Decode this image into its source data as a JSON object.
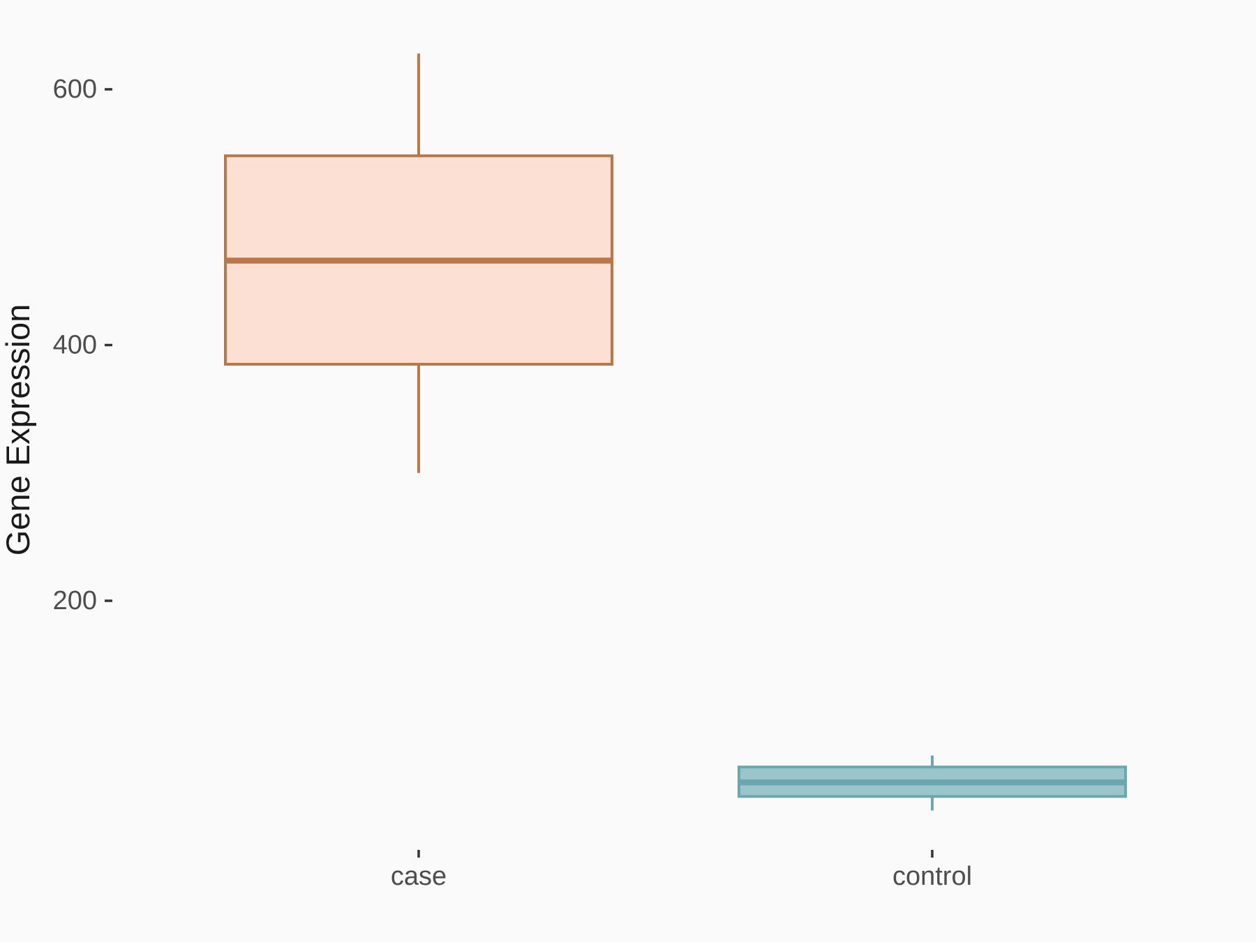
{
  "figure": {
    "background_color": "#FAFAFA"
  },
  "chart_data": {
    "type": "boxplot",
    "title": "",
    "xlabel": "",
    "ylabel": "Gene Expression",
    "categories": [
      "case",
      "control"
    ],
    "y_ticks": [
      200,
      400,
      600
    ],
    "ylim": [
      0,
      650
    ],
    "grid": false,
    "legend": "none",
    "whisker_caps": false,
    "series": [
      {
        "name": "case",
        "whisker_low": 300,
        "q1": 385,
        "median": 466,
        "q3": 548,
        "whisker_high": 628,
        "stroke_color": "#BC7746",
        "fill_color": "#FCE0D4"
      },
      {
        "name": "control",
        "whisker_low": 36,
        "q1": 47,
        "median": 58,
        "q3": 70,
        "whisker_high": 79,
        "stroke_color": "#6BA7AF",
        "fill_color": "#9AC5CA"
      }
    ],
    "colors": {
      "background": "#FAFAFA",
      "axis_text": "#4D4D4D",
      "axis_title": "#1A1A1A",
      "tick_mark": "#333333"
    }
  }
}
